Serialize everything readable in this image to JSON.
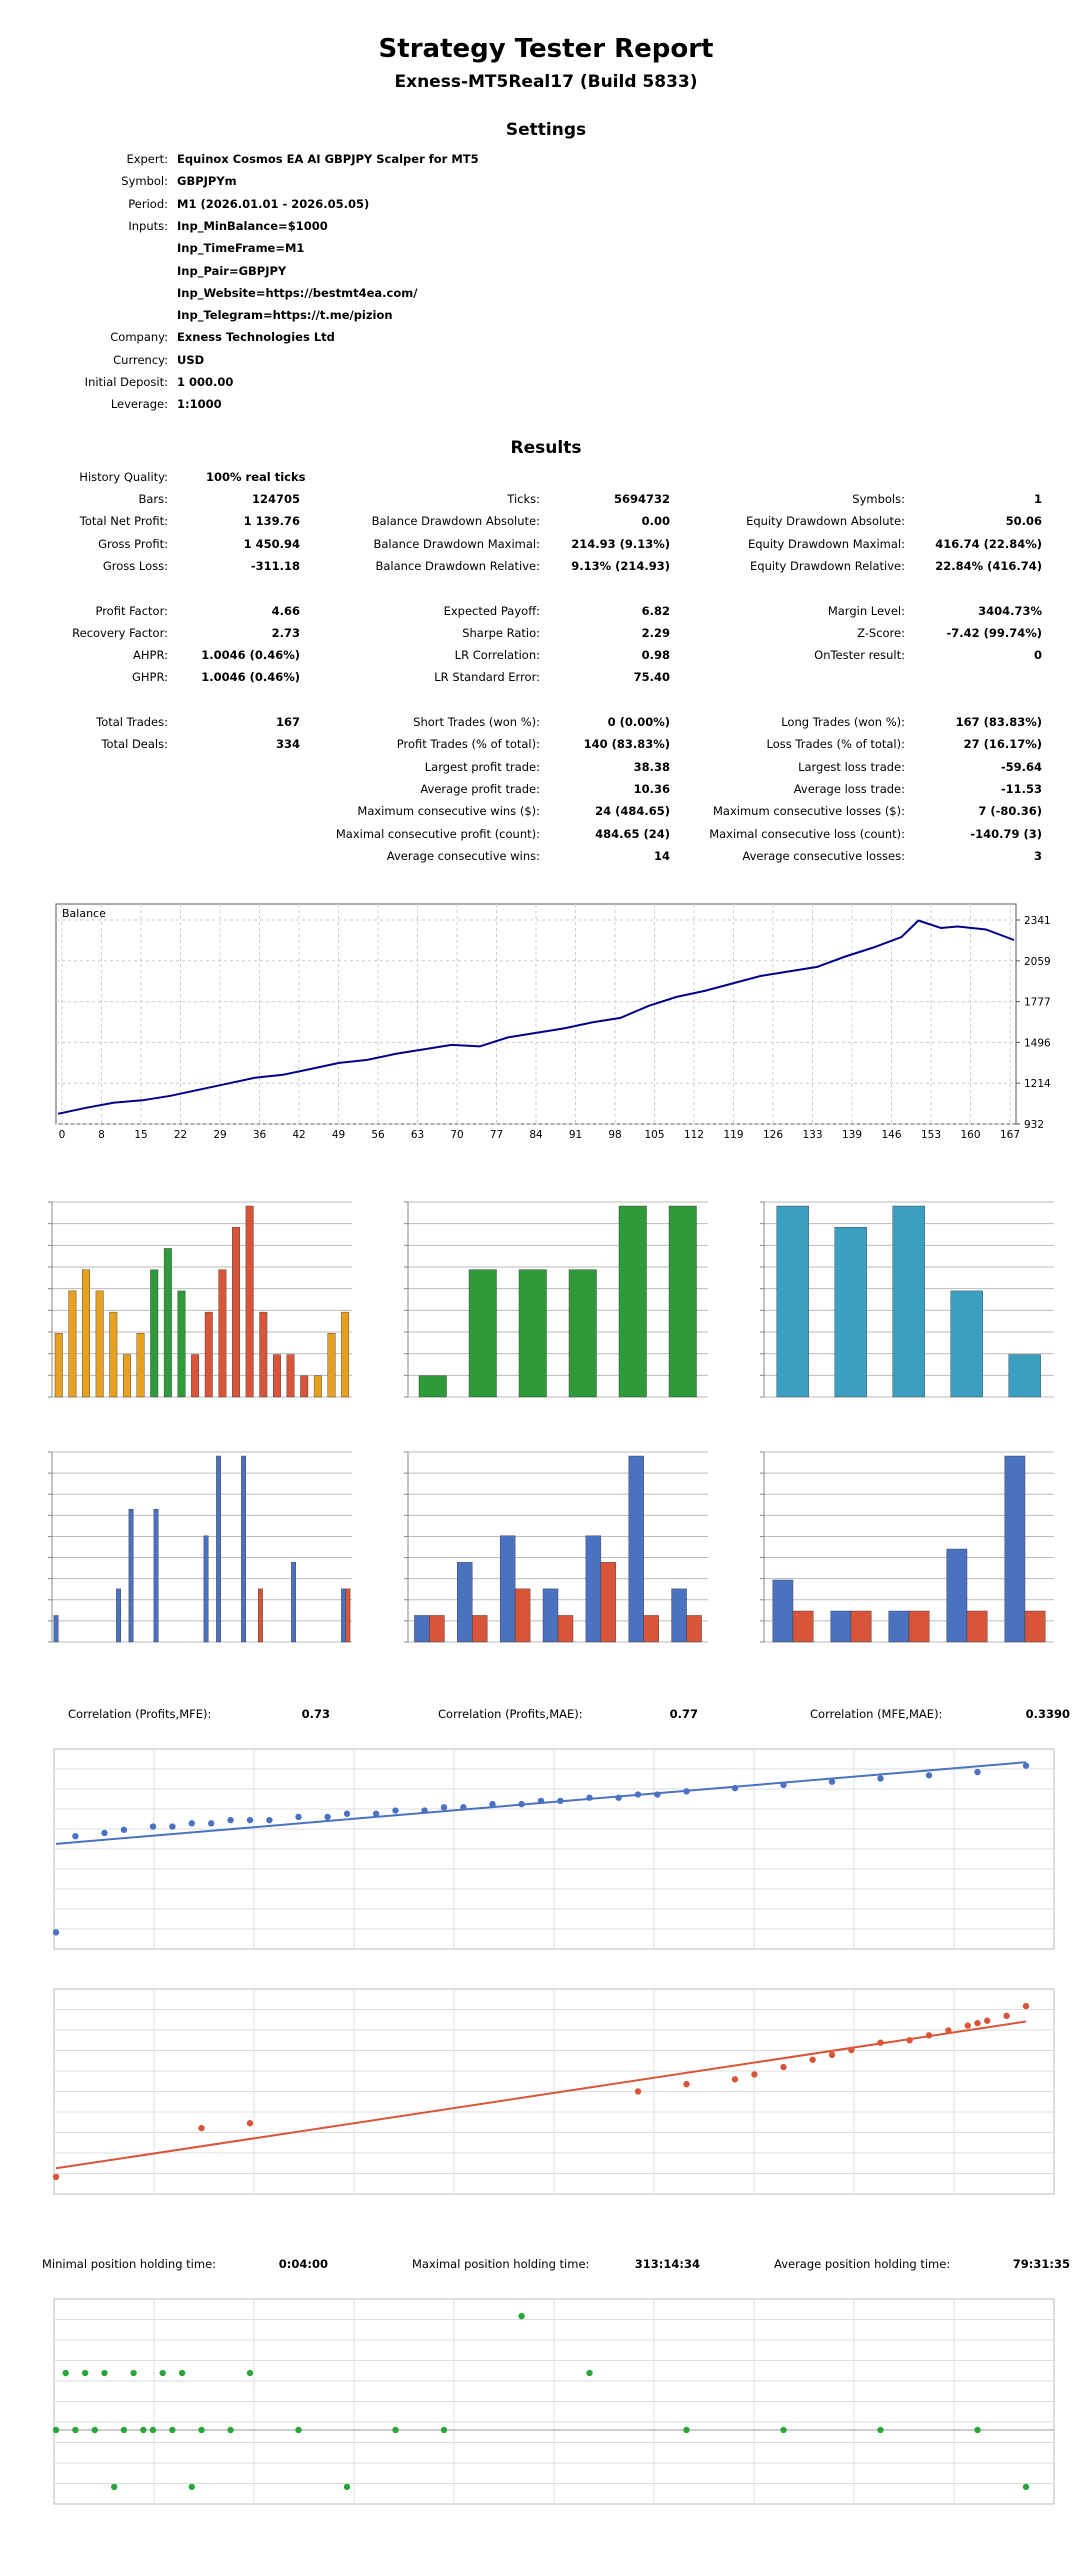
{
  "header": {
    "title": "Strategy Tester Report",
    "subtitle": "Exness-MT5Real17 (Build 5833)"
  },
  "settings": {
    "heading": "Settings",
    "rows": [
      {
        "label": "Expert:",
        "value": "Equinox Cosmos EA AI GBPJPY Scalper for MT5"
      },
      {
        "label": "Symbol:",
        "value": "GBPJPYm"
      },
      {
        "label": "Period:",
        "value": "M1 (2026.01.01 - 2026.05.05)"
      },
      {
        "label": "Inputs:",
        "value": "Inp_MinBalance=$1000"
      },
      {
        "label": "",
        "value": "Inp_TimeFrame=M1"
      },
      {
        "label": "",
        "value": "Inp_Pair=GBPJPY"
      },
      {
        "label": "",
        "value": "Inp_Website=https://bestmt4ea.com/"
      },
      {
        "label": "",
        "value": "Inp_Telegram=https://t.me/pizion"
      },
      {
        "label": "Company:",
        "value": "Exness Technologies Ltd"
      },
      {
        "label": "Currency:",
        "value": "USD"
      },
      {
        "label": "Initial Deposit:",
        "value": "1 000.00"
      },
      {
        "label": "Leverage:",
        "value": "1:1000"
      }
    ]
  },
  "results": {
    "heading": "Results",
    "history_quality": {
      "label": "History Quality:",
      "value": "100% real ticks"
    },
    "rows": [
      [
        {
          "l": "Bars:",
          "v": "124705"
        },
        {
          "l": "Ticks:",
          "v": "5694732"
        },
        {
          "l": "Symbols:",
          "v": "1"
        }
      ],
      [
        {
          "l": "Total Net Profit:",
          "v": "1 139.76"
        },
        {
          "l": "Balance Drawdown Absolute:",
          "v": "0.00"
        },
        {
          "l": "Equity Drawdown Absolute:",
          "v": "50.06"
        }
      ],
      [
        {
          "l": "Gross Profit:",
          "v": "1 450.94"
        },
        {
          "l": "Balance Drawdown Maximal:",
          "v": "214.93 (9.13%)"
        },
        {
          "l": "Equity Drawdown Maximal:",
          "v": "416.74 (22.84%)"
        }
      ],
      [
        {
          "l": "Gross Loss:",
          "v": "-311.18"
        },
        {
          "l": "Balance Drawdown Relative:",
          "v": "9.13% (214.93)"
        },
        {
          "l": "Equity Drawdown Relative:",
          "v": "22.84% (416.74)"
        }
      ],
      null,
      [
        {
          "l": "Profit Factor:",
          "v": "4.66"
        },
        {
          "l": "Expected Payoff:",
          "v": "6.82"
        },
        {
          "l": "Margin Level:",
          "v": "3404.73%"
        }
      ],
      [
        {
          "l": "Recovery Factor:",
          "v": "2.73"
        },
        {
          "l": "Sharpe Ratio:",
          "v": "2.29"
        },
        {
          "l": "Z-Score:",
          "v": "-7.42 (99.74%)"
        }
      ],
      [
        {
          "l": "AHPR:",
          "v": "1.0046 (0.46%)"
        },
        {
          "l": "LR Correlation:",
          "v": "0.98"
        },
        {
          "l": "OnTester result:",
          "v": "0"
        }
      ],
      [
        {
          "l": "GHPR:",
          "v": "1.0046 (0.46%)"
        },
        {
          "l": "LR Standard Error:",
          "v": "75.40"
        },
        null
      ],
      null,
      [
        {
          "l": "Total Trades:",
          "v": "167"
        },
        {
          "l": "Short Trades (won %):",
          "v": "0 (0.00%)"
        },
        {
          "l": "Long Trades (won %):",
          "v": "167 (83.83%)"
        }
      ],
      [
        {
          "l": "Total Deals:",
          "v": "334"
        },
        {
          "l": "Profit Trades (% of total):",
          "v": "140 (83.83%)"
        },
        {
          "l": "Loss Trades (% of total):",
          "v": "27 (16.17%)"
        }
      ],
      [
        null,
        {
          "l": "Largest profit trade:",
          "v": "38.38"
        },
        {
          "l": "Largest loss trade:",
          "v": "-59.64"
        }
      ],
      [
        null,
        {
          "l": "Average profit trade:",
          "v": "10.36"
        },
        {
          "l": "Average loss trade:",
          "v": "-11.53"
        }
      ],
      [
        null,
        {
          "l": "Maximum consecutive wins ($):",
          "v": "24 (484.65)"
        },
        {
          "l": "Maximum consecutive losses ($):",
          "v": "7 (-80.36)"
        }
      ],
      [
        null,
        {
          "l": "Maximal consecutive profit (count):",
          "v": "484.65 (24)"
        },
        {
          "l": "Maximal consecutive loss (count):",
          "v": "-140.79 (3)"
        }
      ],
      [
        null,
        {
          "l": "Average consecutive wins:",
          "v": "14"
        },
        {
          "l": "Average consecutive losses:",
          "v": "3"
        }
      ]
    ]
  },
  "correlation": [
    {
      "label": "Correlation (Profits,MFE):",
      "value": "0.73"
    },
    {
      "label": "Correlation (Profits,MAE):",
      "value": "0.77"
    },
    {
      "label": "Correlation (MFE,MAE):",
      "value": "0.3390"
    }
  ],
  "holding": [
    {
      "label": "Minimal position holding time:",
      "value": "0:04:00"
    },
    {
      "label": "Maximal position holding time:",
      "value": "313:14:34"
    },
    {
      "label": "Average position holding time:",
      "value": "79:31:35"
    }
  ],
  "colors": {
    "balance_line": "#00008b",
    "orange": "#e8a020",
    "green": "#2f9a3a",
    "red": "#d8553a",
    "blue": "#4a72c0",
    "teal": "#3a9fc0",
    "scatter_green": "#2aa53a"
  },
  "chart_data": [
    {
      "type": "line",
      "title": "Balance",
      "x_ticks": [
        "0",
        "8",
        "15",
        "22",
        "29",
        "36",
        "42",
        "49",
        "56",
        "63",
        "70",
        "77",
        "84",
        "91",
        "98",
        "105",
        "112",
        "119",
        "126",
        "133",
        "139",
        "146",
        "153",
        "160",
        "167"
      ],
      "y_ticks": [
        "2341",
        "2059",
        "1777",
        "1496",
        "1214",
        "932"
      ],
      "ylim": [
        932,
        2400
      ],
      "xlim": [
        0,
        170
      ],
      "series": [
        {
          "x": [
            0,
            5,
            10,
            15,
            20,
            25,
            30,
            35,
            40,
            45,
            50,
            55,
            60,
            65,
            70,
            75,
            80,
            85,
            90,
            95,
            100,
            105,
            110,
            115,
            120,
            125,
            130,
            135,
            140,
            145,
            150,
            153,
            157,
            160,
            165,
            170
          ],
          "y": [
            1000,
            1040,
            1075,
            1090,
            1120,
            1160,
            1200,
            1240,
            1260,
            1300,
            1340,
            1360,
            1400,
            1430,
            1460,
            1450,
            1510,
            1540,
            1570,
            1610,
            1640,
            1720,
            1780,
            1820,
            1870,
            1920,
            1950,
            1980,
            2050,
            2110,
            2180,
            2290,
            2240,
            2250,
            2230,
            2160
          ]
        }
      ]
    },
    {
      "type": "bar",
      "series": [
        {
          "values": [
            3,
            5,
            6,
            5,
            4,
            2,
            3,
            6,
            7,
            5,
            2,
            4,
            6,
            8,
            9,
            4,
            2,
            2,
            1,
            1,
            3,
            4
          ]
        }
      ]
    },
    {
      "type": "bar",
      "series": [
        {
          "values": [
            1,
            6,
            6,
            6,
            9,
            9
          ]
        }
      ]
    },
    {
      "type": "bar",
      "series": [
        {
          "values": [
            9,
            8,
            9,
            5,
            2
          ]
        }
      ]
    },
    {
      "type": "bar",
      "series": [
        {
          "name": "blue",
          "values": [
            1,
            0,
            0,
            0,
            0,
            2,
            5,
            0,
            5,
            0,
            0,
            0,
            4,
            7,
            0,
            7,
            0,
            0,
            0,
            3,
            0,
            0,
            0,
            2
          ]
        },
        {
          "name": "red",
          "values": [
            0,
            0,
            0,
            0,
            0,
            0,
            0,
            0,
            0,
            0,
            0,
            0,
            0,
            0,
            0,
            0,
            2,
            0,
            0,
            0,
            0,
            0,
            0,
            2
          ]
        }
      ]
    },
    {
      "type": "bar",
      "series": [
        {
          "name": "blue",
          "values": [
            1,
            3,
            4,
            2,
            4,
            7,
            2
          ]
        },
        {
          "name": "red",
          "values": [
            1,
            1,
            2,
            1,
            3,
            1,
            1
          ]
        }
      ]
    },
    {
      "type": "bar",
      "series": [
        {
          "name": "blue",
          "values": [
            2,
            1,
            1,
            3,
            6
          ]
        },
        {
          "name": "red",
          "values": [
            1,
            1,
            1,
            1,
            1
          ]
        }
      ]
    },
    {
      "type": "scatter",
      "series": [
        {
          "x": [
            0,
            2,
            5,
            7,
            10,
            12,
            14,
            16,
            18,
            20,
            22,
            25,
            28,
            30,
            33,
            35,
            38,
            40,
            42,
            45,
            48,
            50,
            52,
            55,
            58,
            60,
            62,
            65,
            70,
            75,
            80,
            85,
            90,
            95,
            100
          ],
          "y": [
            40,
            70,
            71,
            72,
            73,
            73,
            74,
            74,
            75,
            75,
            75,
            76,
            76,
            77,
            77,
            78,
            78,
            79,
            79,
            80,
            80,
            81,
            81,
            82,
            82,
            83,
            83,
            84,
            85,
            86,
            87,
            88,
            89,
            90,
            92
          ]
        }
      ]
    },
    {
      "type": "scatter",
      "series": [
        {
          "x": [
            0,
            15,
            20,
            60,
            65,
            70,
            72,
            75,
            78,
            80,
            82,
            85,
            88,
            90,
            92,
            94,
            95,
            96,
            98,
            100
          ],
          "y": [
            0,
            20,
            22,
            35,
            38,
            40,
            42,
            45,
            48,
            50,
            52,
            55,
            56,
            58,
            60,
            62,
            63,
            64,
            66,
            70
          ]
        }
      ]
    },
    {
      "type": "scatter",
      "series": [
        {
          "x": [
            0,
            1,
            2,
            3,
            4,
            5,
            6,
            7,
            8,
            9,
            10,
            11,
            12,
            13,
            14,
            15,
            18,
            20,
            25,
            30,
            35,
            40,
            48,
            55,
            65,
            75,
            85,
            95,
            100
          ],
          "y": [
            2,
            3,
            2,
            3,
            2,
            3,
            1,
            2,
            3,
            2,
            2,
            3,
            2,
            3,
            1,
            2,
            2,
            3,
            2,
            1,
            2,
            2,
            4,
            3,
            2,
            2,
            2,
            2,
            1
          ]
        }
      ]
    }
  ]
}
